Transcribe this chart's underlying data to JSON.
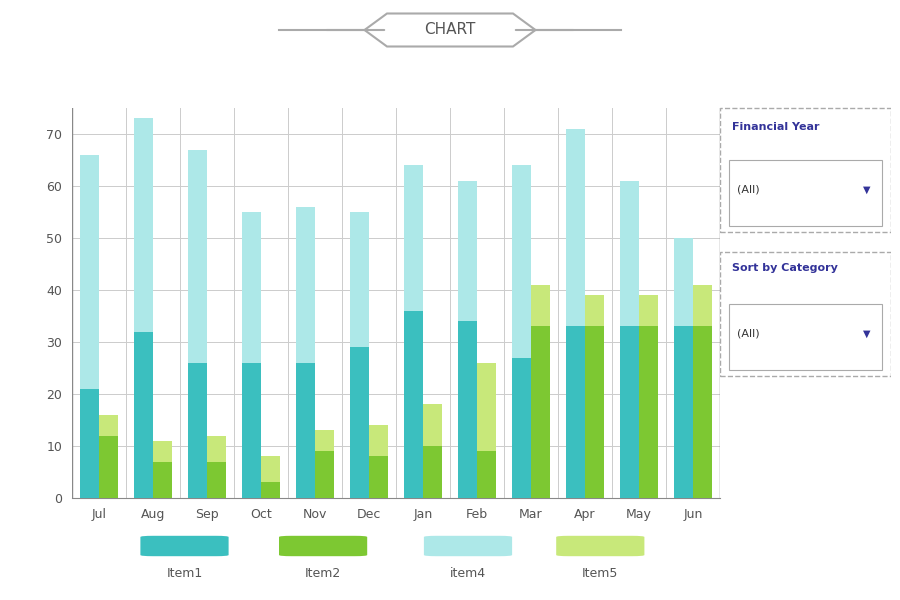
{
  "months": [
    "Jul",
    "Aug",
    "Sep",
    "Oct",
    "Nov",
    "Dec",
    "Jan",
    "Feb",
    "Mar",
    "Apr",
    "May",
    "Jun"
  ],
  "item1": [
    21,
    32,
    26,
    26,
    26,
    29,
    36,
    34,
    27,
    33,
    33,
    33
  ],
  "item4": [
    45,
    41,
    41,
    29,
    30,
    26,
    28,
    27,
    37,
    38,
    28,
    17
  ],
  "item2": [
    12,
    7,
    7,
    3,
    9,
    8,
    10,
    9,
    33,
    33,
    33,
    33
  ],
  "item5": [
    4,
    4,
    5,
    5,
    4,
    6,
    8,
    17,
    8,
    6,
    6,
    8
  ],
  "color_item1": "#3BBFBF",
  "color_item4": "#ADE8E8",
  "color_item2": "#7DC832",
  "color_item5": "#C8E87A",
  "title": "CHART",
  "ylim": [
    0,
    75
  ],
  "yticks": [
    0,
    10,
    20,
    30,
    40,
    50,
    60,
    70
  ],
  "bar_width": 0.35,
  "background": "#FFFFFF"
}
